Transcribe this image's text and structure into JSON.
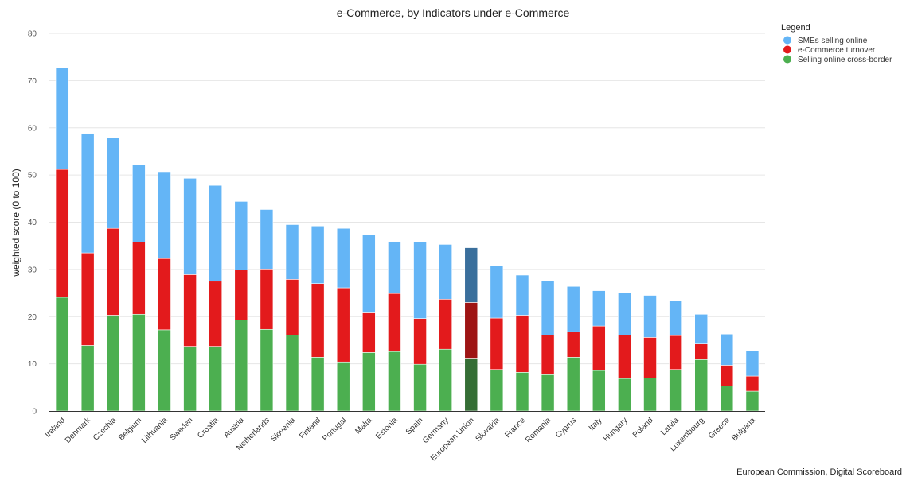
{
  "chart_data": {
    "type": "bar",
    "stacked": true,
    "title": "e-Commerce, by Indicators under e-Commerce",
    "xlabel": "",
    "ylabel": "weighted score (0 to 100)",
    "ylim": [
      0,
      80
    ],
    "yticks": [
      0,
      10,
      20,
      30,
      40,
      50,
      60,
      70,
      80
    ],
    "grid": true,
    "legend": {
      "title": "Legend",
      "position": "top-right"
    },
    "categories": [
      "Ireland",
      "Denmark",
      "Czechia",
      "Belgium",
      "Lithuania",
      "Sweden",
      "Croatia",
      "Austria",
      "Netherlands",
      "Slovenia",
      "Finland",
      "Portugal",
      "Malta",
      "Estonia",
      "Spain",
      "Germany",
      "European Union",
      "Slovakia",
      "France",
      "Romania",
      "Cyprus",
      "Italy",
      "Hungary",
      "Poland",
      "Latvia",
      "Luxembourg",
      "Greece",
      "Bulgaria"
    ],
    "highlight_category": "European Union",
    "series": [
      {
        "name": "Selling online cross-border",
        "color": "#4caf50",
        "highlight_color": "#356e35",
        "values": [
          24.1,
          13.9,
          20.3,
          20.5,
          17.2,
          13.7,
          13.7,
          19.3,
          17.3,
          16.1,
          11.4,
          10.4,
          12.4,
          12.6,
          9.9,
          13.1,
          11.2,
          8.8,
          8.2,
          7.7,
          11.4,
          8.6,
          6.9,
          7.0,
          8.8,
          10.9,
          5.3,
          4.2
        ]
      },
      {
        "name": "e-Commerce turnover",
        "color": "#e31a1c",
        "highlight_color": "#9e1414",
        "values": [
          27.1,
          19.6,
          18.4,
          15.3,
          15.1,
          15.2,
          13.8,
          10.6,
          12.8,
          11.8,
          15.6,
          15.7,
          8.4,
          12.3,
          9.7,
          10.6,
          11.8,
          10.9,
          12.1,
          8.4,
          5.4,
          9.4,
          9.2,
          8.6,
          7.2,
          3.3,
          4.4,
          3.2
        ]
      },
      {
        "name": "SMEs selling online",
        "color": "#64b5f6",
        "highlight_color": "#3a6f9c",
        "values": [
          21.6,
          25.3,
          19.2,
          16.4,
          18.4,
          20.4,
          20.3,
          14.5,
          12.6,
          11.6,
          12.2,
          12.6,
          16.5,
          11.0,
          16.2,
          11.6,
          11.6,
          11.1,
          8.5,
          11.5,
          9.6,
          7.5,
          8.9,
          8.9,
          7.3,
          6.3,
          6.6,
          5.4
        ]
      }
    ],
    "legend_order": [
      "SMEs selling online",
      "e-Commerce turnover",
      "Selling online cross-border"
    ]
  },
  "credit": "European Commission, Digital Scoreboard"
}
